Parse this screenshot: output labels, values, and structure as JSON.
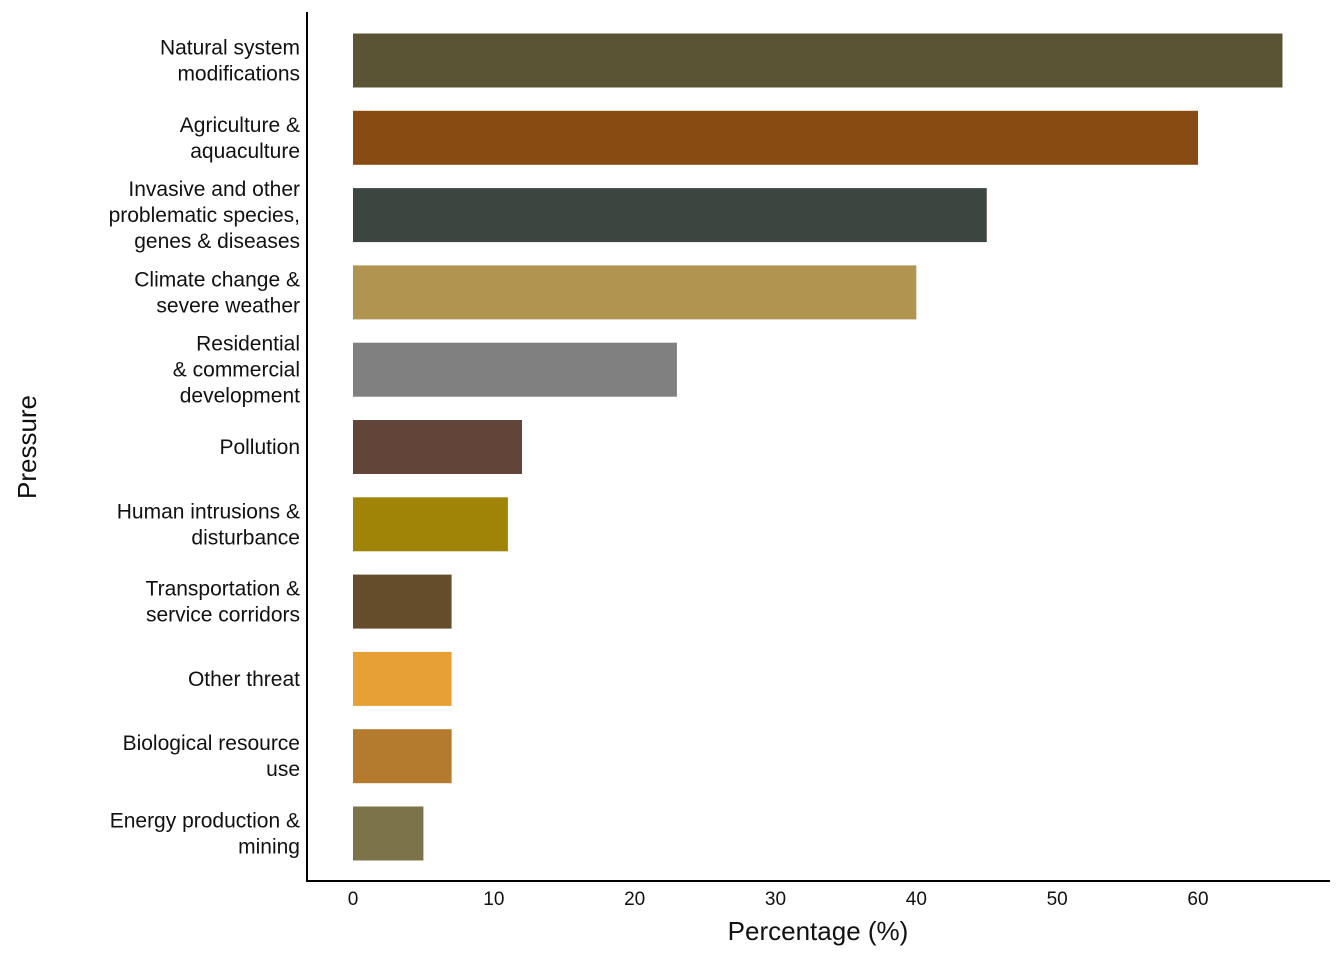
{
  "chart_data": {
    "type": "bar",
    "orientation": "horizontal",
    "title": "",
    "xlabel": "Percentage (%)",
    "ylabel": "Pressure",
    "xlim": [
      0,
      66
    ],
    "xticks": [
      0,
      10,
      20,
      30,
      40,
      50,
      60
    ],
    "grid": false,
    "legend": "none",
    "categories": [
      [
        "Natural system",
        "modifications"
      ],
      [
        "Agriculture &",
        "aquaculture"
      ],
      [
        "Invasive and other",
        "problematic species,",
        "genes & diseases"
      ],
      [
        "Climate change &",
        "severe weather"
      ],
      [
        "Residential",
        "& commercial",
        "development"
      ],
      [
        "Pollution"
      ],
      [
        "Human intrusions &",
        "disturbance"
      ],
      [
        "Transportation &",
        "service corridors"
      ],
      [
        "Other threat"
      ],
      [
        "Biological resource",
        "use"
      ],
      [
        "Energy production &",
        "mining"
      ]
    ],
    "values": [
      66,
      60,
      45,
      40,
      23,
      12,
      11,
      7,
      7,
      7,
      5
    ],
    "colors": [
      "#5a5434",
      "#884c12",
      "#3c4641",
      "#b09450",
      "#808080",
      "#624438",
      "#a08408",
      "#654c2a",
      "#e6a036",
      "#b47a2e",
      "#7c7448"
    ]
  }
}
